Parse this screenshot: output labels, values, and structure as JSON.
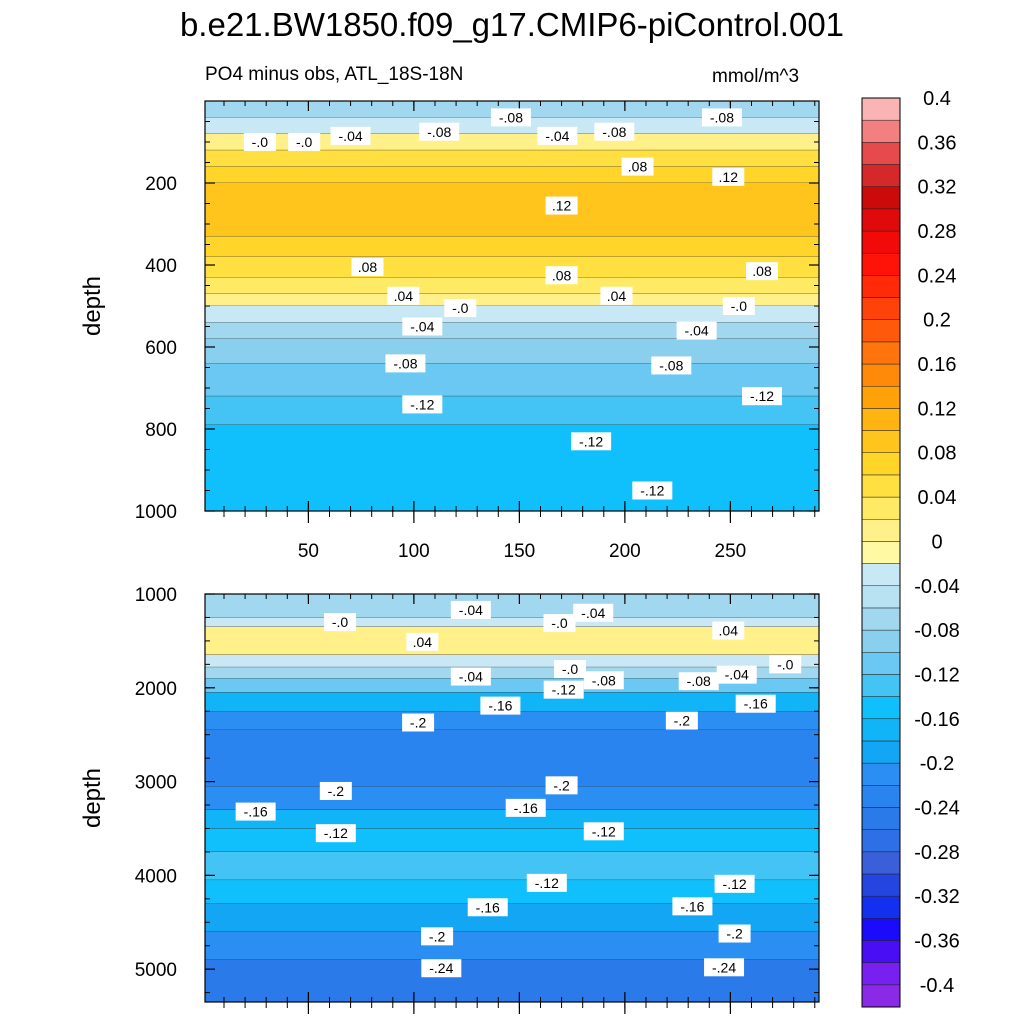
{
  "chart_data": {
    "type": "heatmap",
    "title": "b.e21.BW1850.f09_g17.CMIP6-piControl.001",
    "left_string": "PO4 minus obs, ATL_18S-18N",
    "right_string": "mmol/m^3",
    "ylabel": "depth",
    "x_ticks": [
      "50",
      "100",
      "150",
      "200",
      "250"
    ],
    "x_tick_values": [
      50,
      100,
      150,
      200,
      250
    ],
    "xlim": [
      1,
      292
    ],
    "panels": [
      {
        "name": "upper",
        "ylim": [
          0,
          1000
        ],
        "y_ticks": [
          "200",
          "400",
          "600",
          "800",
          "1000"
        ],
        "y_tick_values": [
          200,
          400,
          600,
          800,
          1000
        ],
        "layers": [
          {
            "depth": [
              0,
              40
            ],
            "value": -0.06
          },
          {
            "depth": [
              40,
              80
            ],
            "value": -0.02
          },
          {
            "depth": [
              80,
              120
            ],
            "value": 0.02
          },
          {
            "depth": [
              120,
              160
            ],
            "value": 0.06
          },
          {
            "depth": [
              160,
              200
            ],
            "value": 0.09
          },
          {
            "depth": [
              200,
              330
            ],
            "value": 0.11
          },
          {
            "depth": [
              330,
              380
            ],
            "value": 0.09
          },
          {
            "depth": [
              380,
              430
            ],
            "value": 0.07
          },
          {
            "depth": [
              430,
              470
            ],
            "value": 0.05
          },
          {
            "depth": [
              470,
              500
            ],
            "value": 0.02
          },
          {
            "depth": [
              500,
              540
            ],
            "value": -0.02
          },
          {
            "depth": [
              540,
              580
            ],
            "value": -0.05
          },
          {
            "depth": [
              580,
              640
            ],
            "value": -0.07
          },
          {
            "depth": [
              640,
              720
            ],
            "value": -0.09
          },
          {
            "depth": [
              720,
              790
            ],
            "value": -0.11
          },
          {
            "depth": [
              790,
              1000
            ],
            "value": -0.13
          }
        ],
        "labels": [
          {
            "text": "-.0",
            "x": 27,
            "depth": 100
          },
          {
            "text": "-.0",
            "x": 48,
            "depth": 100
          },
          {
            "text": "-.04",
            "x": 70,
            "depth": 85
          },
          {
            "text": "-.08",
            "x": 112,
            "depth": 75
          },
          {
            "text": "-.08",
            "x": 146,
            "depth": 40
          },
          {
            "text": "-.04",
            "x": 168,
            "depth": 85
          },
          {
            "text": "-.08",
            "x": 195,
            "depth": 75
          },
          {
            "text": "-.08",
            "x": 246,
            "depth": 40
          },
          {
            "text": ".08",
            "x": 206,
            "depth": 160
          },
          {
            "text": ".12",
            "x": 249,
            "depth": 185
          },
          {
            "text": ".12",
            "x": 170,
            "depth": 255
          },
          {
            "text": ".08",
            "x": 78,
            "depth": 405
          },
          {
            "text": ".08",
            "x": 170,
            "depth": 425
          },
          {
            "text": ".08",
            "x": 265,
            "depth": 415
          },
          {
            "text": ".04",
            "x": 95,
            "depth": 475
          },
          {
            "text": ".04",
            "x": 196,
            "depth": 475
          },
          {
            "text": "-.0",
            "x": 122,
            "depth": 505
          },
          {
            "text": "-.0",
            "x": 254,
            "depth": 500
          },
          {
            "text": "-.04",
            "x": 104,
            "depth": 550
          },
          {
            "text": "-.04",
            "x": 234,
            "depth": 560
          },
          {
            "text": "-.08",
            "x": 96,
            "depth": 640
          },
          {
            "text": "-.08",
            "x": 222,
            "depth": 645
          },
          {
            "text": "-.12",
            "x": 104,
            "depth": 740
          },
          {
            "text": "-.12",
            "x": 184,
            "depth": 830
          },
          {
            "text": "-.12",
            "x": 265,
            "depth": 720
          },
          {
            "text": "-.12",
            "x": 213,
            "depth": 950
          }
        ]
      },
      {
        "name": "lower",
        "ylim": [
          1000,
          5350
        ],
        "y_ticks": [
          "1000",
          "2000",
          "3000",
          "4000",
          "5000"
        ],
        "y_tick_values": [
          1000,
          2000,
          3000,
          4000,
          5000
        ],
        "layers": [
          {
            "depth": [
              1000,
              1250
            ],
            "value": -0.06
          },
          {
            "depth": [
              1250,
              1350
            ],
            "value": -0.01
          },
          {
            "depth": [
              1350,
              1650
            ],
            "value": 0.03
          },
          {
            "depth": [
              1650,
              1780
            ],
            "value": -0.01
          },
          {
            "depth": [
              1780,
              1900
            ],
            "value": -0.05
          },
          {
            "depth": [
              1900,
              2050
            ],
            "value": -0.1
          },
          {
            "depth": [
              2050,
              2250
            ],
            "value": -0.15
          },
          {
            "depth": [
              2250,
              2450
            ],
            "value": -0.19
          },
          {
            "depth": [
              2450,
              3050
            ],
            "value": -0.22
          },
          {
            "depth": [
              3050,
              3300
            ],
            "value": -0.19
          },
          {
            "depth": [
              3300,
              3500
            ],
            "value": -0.15
          },
          {
            "depth": [
              3500,
              3750
            ],
            "value": -0.13
          },
          {
            "depth": [
              3750,
              4050
            ],
            "value": -0.11
          },
          {
            "depth": [
              4050,
              4300
            ],
            "value": -0.14
          },
          {
            "depth": [
              4300,
              4600
            ],
            "value": -0.17
          },
          {
            "depth": [
              4600,
              4900
            ],
            "value": -0.2
          },
          {
            "depth": [
              4900,
              5350
            ],
            "value": -0.23
          }
        ],
        "labels": [
          {
            "text": "-.0",
            "x": 65,
            "depth": 1300
          },
          {
            "text": "-.04",
            "x": 127,
            "depth": 1170
          },
          {
            "text": "-.0",
            "x": 169,
            "depth": 1310
          },
          {
            "text": "-.04",
            "x": 185,
            "depth": 1200
          },
          {
            "text": ".04",
            "x": 104,
            "depth": 1510
          },
          {
            "text": ".04",
            "x": 249,
            "depth": 1390
          },
          {
            "text": "-.0",
            "x": 174,
            "depth": 1800
          },
          {
            "text": "-.0",
            "x": 276,
            "depth": 1750
          },
          {
            "text": "-.04",
            "x": 127,
            "depth": 1880
          },
          {
            "text": "-.04",
            "x": 253,
            "depth": 1860
          },
          {
            "text": "-.08",
            "x": 190,
            "depth": 1920
          },
          {
            "text": "-.08",
            "x": 235,
            "depth": 1930
          },
          {
            "text": "-.12",
            "x": 171,
            "depth": 2020
          },
          {
            "text": "-.16",
            "x": 141,
            "depth": 2190
          },
          {
            "text": "-.16",
            "x": 262,
            "depth": 2170
          },
          {
            "text": "-.2",
            "x": 102,
            "depth": 2370
          },
          {
            "text": "-.2",
            "x": 227,
            "depth": 2350
          },
          {
            "text": "-.2",
            "x": 63,
            "depth": 3100
          },
          {
            "text": "-.2",
            "x": 170,
            "depth": 3040
          },
          {
            "text": "-.16",
            "x": 25,
            "depth": 3320
          },
          {
            "text": "-.16",
            "x": 153,
            "depth": 3280
          },
          {
            "text": "-.12",
            "x": 63,
            "depth": 3550
          },
          {
            "text": "-.12",
            "x": 190,
            "depth": 3530
          },
          {
            "text": "-.12",
            "x": 163,
            "depth": 4080
          },
          {
            "text": "-.12",
            "x": 252,
            "depth": 4090
          },
          {
            "text": "-.16",
            "x": 135,
            "depth": 4340
          },
          {
            "text": "-.16",
            "x": 232,
            "depth": 4330
          },
          {
            "text": "-.2",
            "x": 111,
            "depth": 4650
          },
          {
            "text": "-.2",
            "x": 252,
            "depth": 4620
          },
          {
            "text": "-.24",
            "x": 113,
            "depth": 4990
          },
          {
            "text": "-.24",
            "x": 247,
            "depth": 4980
          }
        ]
      }
    ],
    "colorbar": {
      "levels": [
        -0.4,
        -0.38,
        -0.36,
        -0.34,
        -0.32,
        -0.3,
        -0.28,
        -0.26,
        -0.24,
        -0.22,
        -0.2,
        -0.18,
        -0.16,
        -0.14,
        -0.12,
        -0.1,
        -0.08,
        -0.06,
        -0.04,
        -0.02,
        0,
        0.02,
        0.04,
        0.06,
        0.08,
        0.1,
        0.12,
        0.14,
        0.16,
        0.18,
        0.2,
        0.22,
        0.24,
        0.26,
        0.28,
        0.3,
        0.32,
        0.34,
        0.36,
        0.38,
        0.4
      ],
      "colors": [
        "#8a2ae6",
        "#7720f0",
        "#4a0ef5",
        "#1a0cfa",
        "#1430ef",
        "#2545e0",
        "#3a5fd8",
        "#2f6fe6",
        "#2a7aea",
        "#2a84f0",
        "#2a8ef2",
        "#12a6f5",
        "#12b4f8",
        "#10c0fc",
        "#44c4f4",
        "#6ac8f2",
        "#8acfee",
        "#a2d8ef",
        "#b8e2f2",
        "#c8e8f5",
        "#fff9a4",
        "#fff08a",
        "#ffea66",
        "#ffe040",
        "#ffd52a",
        "#ffc51c",
        "#ffb412",
        "#ffa20a",
        "#ff8a0a",
        "#ff740c",
        "#ff5a0a",
        "#ff420a",
        "#ff2a08",
        "#ff1208",
        "#f20a08",
        "#e00a0a",
        "#cc0a0a",
        "#d4282a",
        "#e64a4a",
        "#f28080",
        "#fab4b4"
      ],
      "tick_labels": [
        "-0.4",
        "-0.36",
        "-0.32",
        "-0.28",
        "-0.24",
        "-0.2",
        "-0.16",
        "-0.12",
        "-0.08",
        "-0.04",
        "0",
        "0.04",
        "0.08",
        "0.12",
        "0.16",
        "0.2",
        "0.24",
        "0.28",
        "0.32",
        "0.36",
        "0.4"
      ]
    }
  }
}
